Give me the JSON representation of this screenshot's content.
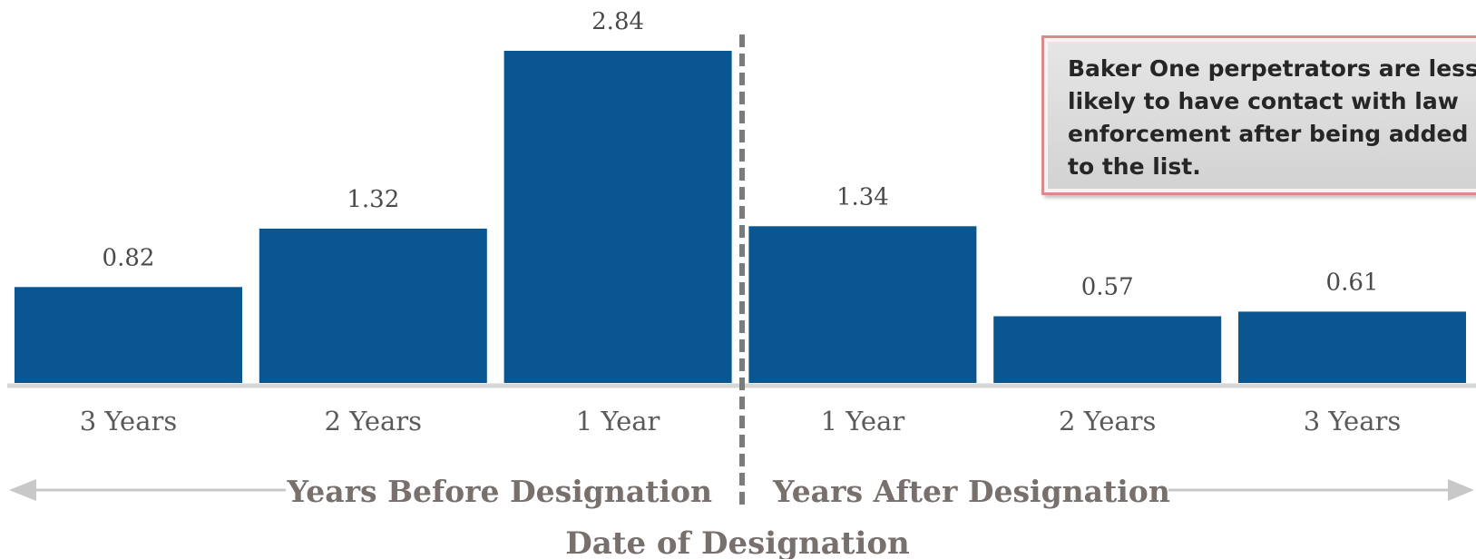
{
  "chart_data": {
    "type": "bar",
    "categories": [
      "3 Years",
      "2 Years",
      "1 Year",
      "1 Year",
      "2 Years",
      "3 Years"
    ],
    "values": [
      0.82,
      1.32,
      2.84,
      1.34,
      0.57,
      0.61
    ],
    "value_labels": [
      "0.82",
      "1.32",
      "2.84",
      "1.34",
      "0.57",
      "0.61"
    ],
    "group_labels": {
      "before": "Years Before Designation",
      "after": "Years After Designation"
    },
    "xlabel": "Date of Designation",
    "ylabel": "",
    "ylim": [
      0,
      2.84
    ],
    "grid": false,
    "legend": "none",
    "bar_color": "#0a5690",
    "divider": "dashed vertical line between 1 Year before and 1 Year after",
    "annotation": "Baker One perpetrators are less likely to have contact with law enforcement after being added to the list."
  },
  "colors": {
    "bar": "#0a5690",
    "baseline": "#d6d6d6",
    "divider": "#7b7b7b",
    "arrow": "#c8c8c8",
    "callout_border": "#d98a8a"
  }
}
